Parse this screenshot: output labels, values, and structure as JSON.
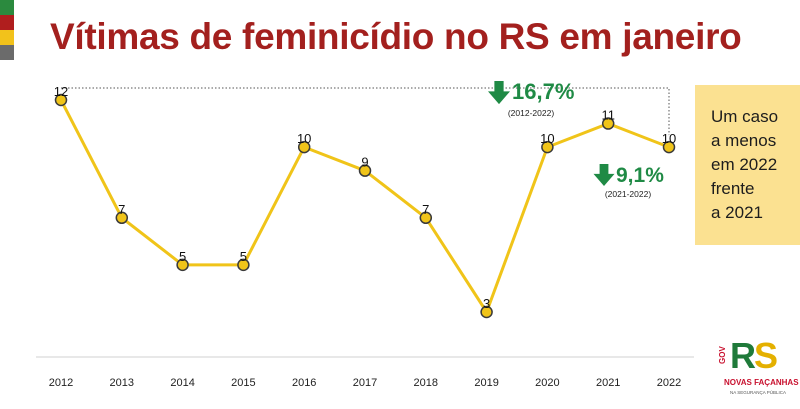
{
  "colors": {
    "title": "#a3201e",
    "line": "#f0c419",
    "marker_fill": "#f0c419",
    "marker_stroke": "#3a3a3a",
    "arrow_green": "#1f8a45",
    "note_bg": "#fbe191",
    "stripe_1": "#2b8a3e",
    "stripe_2": "#b01e1e",
    "stripe_3": "#f2c21b",
    "stripe_4": "#6b6b6b"
  },
  "header": {
    "title": "Vítimas de feminicídio no RS em janeiro"
  },
  "chart_data": {
    "type": "line",
    "title": "Vítimas de feminicídio no RS em janeiro",
    "xlabel": "",
    "ylabel": "",
    "categories": [
      "2012",
      "2013",
      "2014",
      "2015",
      "2016",
      "2017",
      "2018",
      "2019",
      "2020",
      "2021",
      "2022"
    ],
    "values": [
      12,
      7,
      5,
      5,
      10,
      9,
      7,
      3,
      10,
      11,
      10
    ],
    "data_labels": [
      "12",
      "7",
      "5",
      "5",
      "10",
      "9",
      "7",
      "3",
      "10",
      "11",
      "10"
    ],
    "ylim": [
      3,
      12
    ],
    "grid": false,
    "annotations": [
      {
        "value": "16,7%",
        "period": "(2012-2022)",
        "direction": "down"
      },
      {
        "value": "9,1%",
        "period": "(2021-2022)",
        "direction": "down"
      }
    ]
  },
  "note": {
    "lines": [
      "Um caso",
      "a menos",
      "em 2022",
      "frente",
      "a 2021"
    ]
  },
  "logo": {
    "gov": "GOV",
    "letters_r": "R",
    "letters_s": "S",
    "tagline": "NOVAS FAÇANHAS",
    "subtitle": "NA SEGURANÇA PÚBLICA"
  }
}
